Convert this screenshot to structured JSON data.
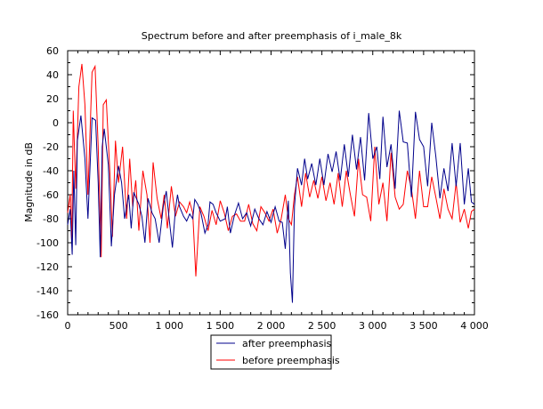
{
  "chart_data": {
    "type": "line",
    "title": "Spectrum before and after preemphasis of i_male_8k",
    "xlabel": "",
    "ylabel": "Magnitude in dB",
    "xlim": [
      0,
      4000
    ],
    "ylim": [
      -160,
      60
    ],
    "xticks": [
      0,
      500,
      1000,
      1500,
      2000,
      2500,
      3000,
      3500,
      4000
    ],
    "xtick_labels": [
      "0",
      "500",
      "1 000",
      "1 500",
      "2 000",
      "2 500",
      "3 000",
      "3 500",
      "4 000"
    ],
    "yticks": [
      -160,
      -140,
      -120,
      -100,
      -80,
      -60,
      -40,
      -20,
      0,
      20,
      40,
      60
    ],
    "ytick_labels": [
      "-160",
      "-140",
      "-120",
      "-100",
      "-80",
      "-60",
      "-40",
      "-20",
      "0",
      "20",
      "40",
      "60"
    ],
    "grid": false,
    "legend_position": "bottom-center",
    "series": [
      {
        "name": "after preemphasis",
        "color": "#00008b",
        "x": [
          0,
          25,
          45,
          60,
          80,
          95,
          130,
          170,
          200,
          240,
          275,
          300,
          320,
          340,
          360,
          400,
          420,
          430,
          460,
          500,
          530,
          560,
          600,
          625,
          650,
          700,
          730,
          760,
          790,
          830,
          860,
          900,
          940,
          970,
          1000,
          1030,
          1060,
          1080,
          1100,
          1140,
          1170,
          1200,
          1230,
          1250,
          1280,
          1310,
          1350,
          1380,
          1400,
          1430,
          1460,
          1500,
          1550,
          1570,
          1600,
          1640,
          1680,
          1720,
          1760,
          1800,
          1840,
          1880,
          1920,
          1960,
          2000,
          2040,
          2080,
          2110,
          2140,
          2170,
          2190,
          2210,
          2230,
          2260,
          2300,
          2330,
          2360,
          2400,
          2440,
          2480,
          2520,
          2560,
          2600,
          2640,
          2680,
          2720,
          2760,
          2800,
          2840,
          2880,
          2920,
          2960,
          3000,
          3040,
          3070,
          3100,
          3140,
          3180,
          3220,
          3260,
          3300,
          3340,
          3380,
          3420,
          3460,
          3500,
          3540,
          3580,
          3620,
          3660,
          3700,
          3740,
          3780,
          3820,
          3860,
          3900,
          3940,
          3970,
          4000
        ],
        "values": [
          -85,
          -72,
          -110,
          -40,
          -102,
          -15,
          6,
          -30,
          -80,
          4,
          2,
          -50,
          -112,
          -20,
          -5,
          -35,
          -80,
          -103,
          -60,
          -36,
          -50,
          -80,
          -60,
          -88,
          -58,
          -68,
          -78,
          -100,
          -63,
          -75,
          -80,
          -100,
          -70,
          -57,
          -82,
          -104,
          -72,
          -60,
          -70,
          -78,
          -82,
          -76,
          -80,
          -64,
          -68,
          -75,
          -92,
          -85,
          -66,
          -68,
          -75,
          -82,
          -80,
          -70,
          -92,
          -77,
          -67,
          -80,
          -75,
          -86,
          -72,
          -80,
          -85,
          -74,
          -83,
          -70,
          -82,
          -83,
          -105,
          -65,
          -125,
          -150,
          -70,
          -38,
          -52,
          -30,
          -47,
          -34,
          -52,
          -30,
          -52,
          -26,
          -41,
          -24,
          -48,
          -18,
          -45,
          -10,
          -39,
          -12,
          -48,
          8,
          -30,
          -20,
          -47,
          5,
          -37,
          -18,
          -55,
          10,
          -16,
          -17,
          -62,
          9,
          -14,
          -20,
          -53,
          0,
          -28,
          -63,
          -38,
          -57,
          -17,
          -53,
          -17,
          -68,
          -38,
          -66,
          -68
        ]
      },
      {
        "name": "before preemphasis",
        "color": "#ff0000",
        "x": [
          0,
          25,
          40,
          55,
          80,
          110,
          140,
          170,
          200,
          240,
          270,
          300,
          330,
          350,
          380,
          420,
          440,
          470,
          500,
          540,
          580,
          610,
          640,
          670,
          700,
          740,
          780,
          810,
          840,
          880,
          920,
          950,
          980,
          1020,
          1060,
          1100,
          1140,
          1170,
          1200,
          1230,
          1260,
          1300,
          1340,
          1380,
          1420,
          1460,
          1500,
          1540,
          1580,
          1620,
          1660,
          1700,
          1740,
          1780,
          1820,
          1860,
          1900,
          1940,
          1980,
          2020,
          2060,
          2100,
          2140,
          2170,
          2200,
          2230,
          2260,
          2300,
          2340,
          2380,
          2420,
          2460,
          2500,
          2540,
          2580,
          2620,
          2660,
          2700,
          2740,
          2780,
          2820,
          2860,
          2900,
          2940,
          2980,
          3020,
          3060,
          3100,
          3140,
          3180,
          3220,
          3260,
          3300,
          3340,
          3380,
          3420,
          3460,
          3500,
          3540,
          3580,
          3620,
          3660,
          3700,
          3740,
          3780,
          3820,
          3860,
          3900,
          3940,
          3970,
          4000
        ],
        "values": [
          -75,
          -60,
          -100,
          10,
          -55,
          30,
          49,
          15,
          -60,
          42,
          47,
          -20,
          -112,
          15,
          19,
          -50,
          -95,
          -15,
          -50,
          -20,
          -80,
          -30,
          -70,
          -48,
          -90,
          -40,
          -60,
          -100,
          -33,
          -63,
          -80,
          -60,
          -88,
          -53,
          -78,
          -66,
          -70,
          -75,
          -66,
          -75,
          -128,
          -70,
          -78,
          -90,
          -73,
          -85,
          -65,
          -75,
          -90,
          -78,
          -76,
          -82,
          -82,
          -68,
          -84,
          -90,
          -70,
          -75,
          -82,
          -72,
          -92,
          -80,
          -60,
          -80,
          -85,
          -60,
          -45,
          -70,
          -42,
          -62,
          -48,
          -63,
          -45,
          -65,
          -50,
          -68,
          -42,
          -70,
          -40,
          -60,
          -78,
          -30,
          -60,
          -62,
          -82,
          -20,
          -68,
          -50,
          -82,
          -25,
          -62,
          -72,
          -68,
          -40,
          -55,
          -80,
          -40,
          -70,
          -70,
          -45,
          -62,
          -80,
          -55,
          -72,
          -80,
          -50,
          -83,
          -72,
          -88,
          -74,
          -72
        ]
      }
    ]
  }
}
